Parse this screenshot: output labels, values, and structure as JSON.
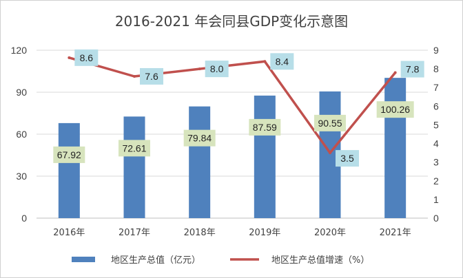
{
  "chart_data": {
    "type": "bar",
    "title": "2016-2021 年会同县GDP变化示意图",
    "categories": [
      "2016年",
      "2017年",
      "2018年",
      "2019年",
      "2020年",
      "2021年"
    ],
    "series": [
      {
        "name": "地区生产总值（亿元）",
        "type": "bar",
        "axis": "left",
        "values": [
          67.92,
          72.61,
          79.84,
          87.59,
          90.55,
          100.26
        ],
        "labels": [
          "67.92",
          "72.61",
          "79.84",
          "87.59",
          "90.55",
          "100.26"
        ],
        "color": "#4f81bd",
        "label_bg": "#d7e4bd"
      },
      {
        "name": "地区生产总值增速（%）",
        "type": "line",
        "axis": "right",
        "values": [
          8.6,
          7.6,
          8.0,
          8.4,
          3.5,
          7.8
        ],
        "labels": [
          "8.6",
          "7.6",
          "8.0",
          "8.4",
          "3.5",
          "7.8"
        ],
        "color": "#c0504d",
        "label_bg": "#b7dee8"
      }
    ],
    "y_left": {
      "lim": [
        0,
        120
      ],
      "ticks": [
        0,
        30,
        60,
        90,
        120
      ],
      "tick_labels": [
        "0",
        "30",
        "60",
        "90",
        "120"
      ]
    },
    "y_right": {
      "lim": [
        0,
        9
      ],
      "ticks": [
        0,
        1,
        2,
        3,
        4,
        5,
        6,
        7,
        8,
        9
      ],
      "tick_labels": [
        "0",
        "1",
        "2",
        "3",
        "4",
        "5",
        "6",
        "7",
        "8",
        "9"
      ]
    },
    "grid": true,
    "legend_position": "bottom"
  }
}
